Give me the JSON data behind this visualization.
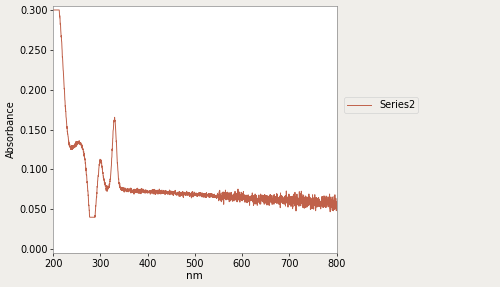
{
  "title": "",
  "xlabel": "nm",
  "ylabel": "Absorbance",
  "legend_label": "Series2",
  "line_color": "#c0614a",
  "fig_facecolor": "#f0eeea",
  "ax_facecolor": "#ffffff",
  "xlim": [
    200,
    800
  ],
  "ylim": [
    -0.005,
    0.305
  ],
  "yticks": [
    0.0,
    0.05,
    0.1,
    0.15,
    0.2,
    0.25,
    0.3
  ],
  "ytick_labels": [
    "0.000",
    "0.050",
    "0.100",
    "0.150",
    "0.200",
    "0.250",
    "0.300"
  ],
  "xticks": [
    200,
    300,
    400,
    500,
    600,
    700,
    800
  ],
  "xtick_labels": [
    "200",
    "300",
    "400",
    "500",
    "600",
    "700",
    "800"
  ]
}
